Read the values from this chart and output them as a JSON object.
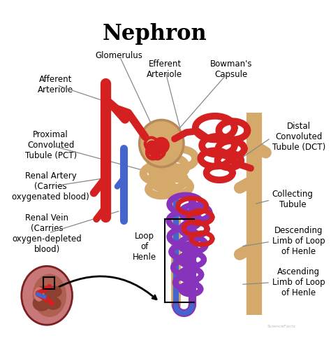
{
  "title": "Nephron",
  "title_fontsize": 22,
  "bg_color": "#ffffff",
  "labels": {
    "glomerulus": "Glomerulus",
    "afferent": "Afferent\nArteriole",
    "efferent": "Efferent\nArteriole",
    "bowmans": "Bowman's\nCapsule",
    "pct": "Proximal\nConvoluted\nTubule (PCT)",
    "renal_artery": "Renal Artery\n(Carries\noxygenated blood)",
    "renal_vein": "Renal Vein\n(Carries\noxygen-depleted\nblood)",
    "loop": "Loop\nof\nHenle",
    "dct": "Distal\nConvoluted\nTubule (DCT)",
    "collecting": "Collecting\nTubule",
    "descending": "Descending\nLimb of Loop\nof Henle",
    "ascending": "Ascending\nLimb of Loop\nof Henle"
  },
  "colors": {
    "red": "#d42020",
    "blue": "#4466cc",
    "purple": "#8833bb",
    "tan": "#d4a96a",
    "tan_dark": "#b8895a",
    "text": "#111111",
    "kidney_outer": "#c87060",
    "kidney_inner": "#a85040",
    "kidney_dark": "#8b3530",
    "line_color": "#888888"
  },
  "fig_w": 4.74,
  "fig_h": 4.93,
  "dpi": 100
}
